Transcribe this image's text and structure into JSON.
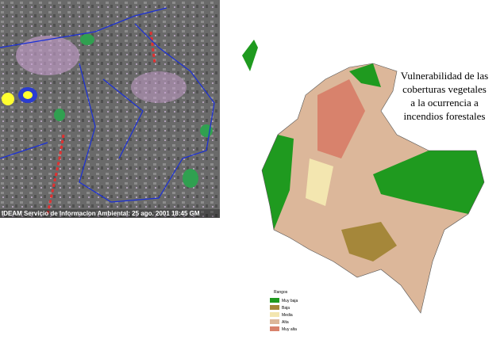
{
  "satellite": {
    "caption": "IDEAM Servicio de Informacion Ambiental: 25 ago. 2001 18:45 GM"
  },
  "map": {
    "title_lines": [
      "Vulnerabilidad de las",
      "coberturas vegetales",
      "a la ocurrencia a",
      "incendios forestales"
    ],
    "legend": {
      "title": "Rangos",
      "items": [
        {
          "label": "Muy baja",
          "color": "#1f9a1f"
        },
        {
          "label": "Baja",
          "color": "#a5873a"
        },
        {
          "label": "Media",
          "color": "#f3e6b0"
        },
        {
          "label": "Alta",
          "color": "#dcb79a"
        },
        {
          "label": "Muy alta",
          "color": "#d8826c"
        }
      ]
    }
  }
}
